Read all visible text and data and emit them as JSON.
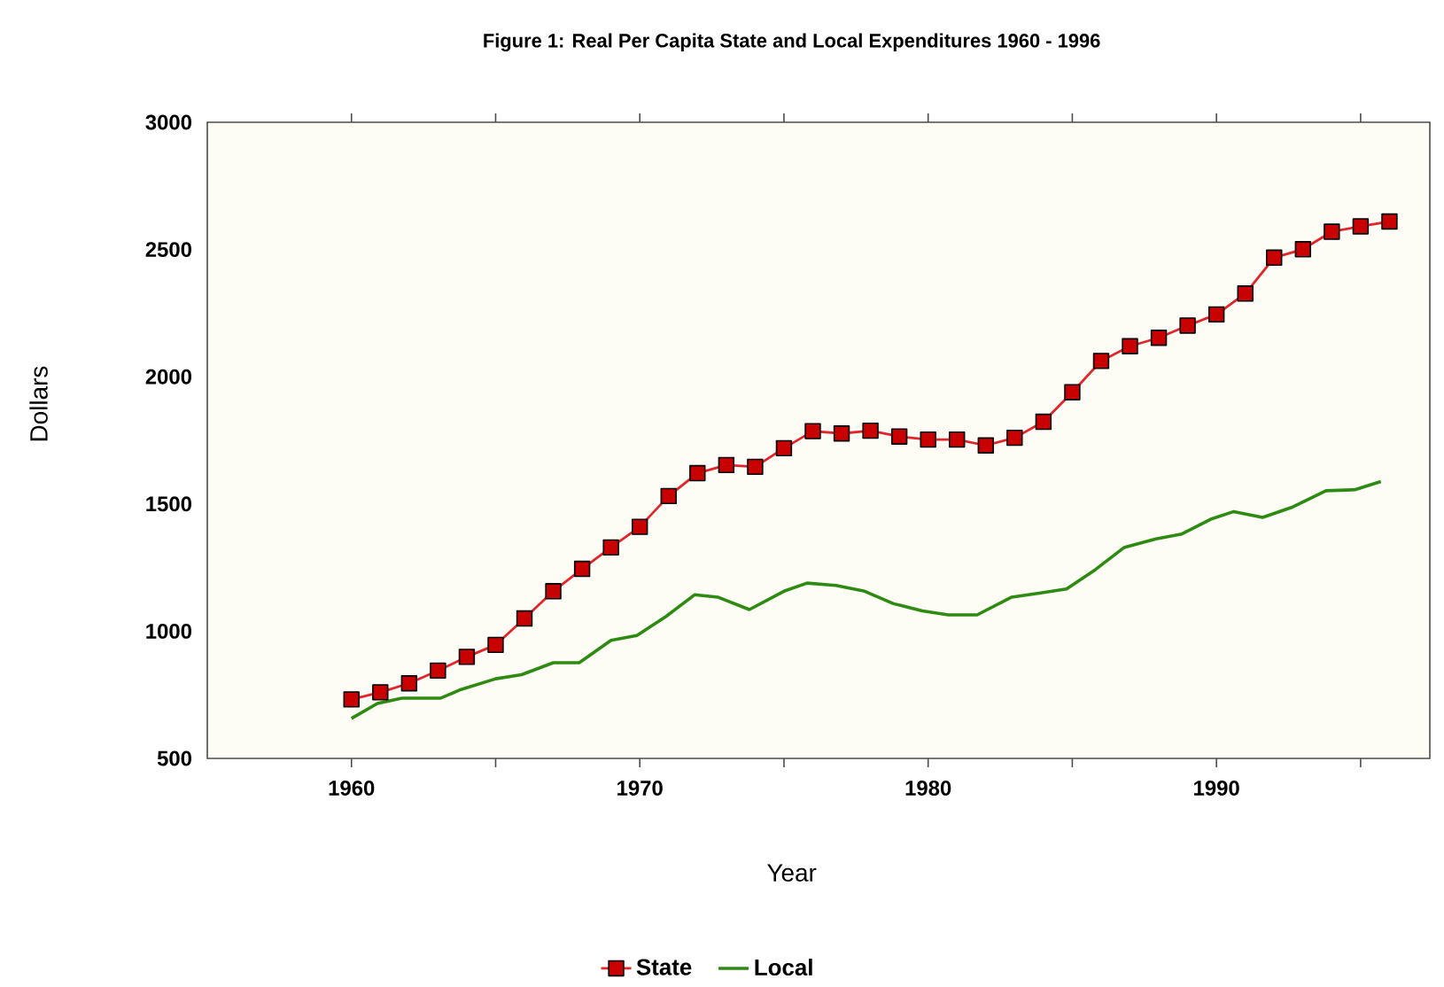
{
  "chart_data": {
    "type": "line",
    "title": "Figure 1: Real Per Capita State and Local Expenditures 1960 - 1996",
    "xlabel": "Year",
    "ylabel": "Dollars",
    "xlim": [
      1955,
      1997.4
    ],
    "ylim": [
      500,
      3000
    ],
    "xticks": [
      1960,
      {
        "value": 1965,
        "label": null
      },
      1970,
      {
        "value": 1975,
        "label": null
      },
      1980,
      {
        "value": 1985,
        "label": null
      },
      1990,
      {
        "value": 1995,
        "label": null
      }
    ],
    "yticks": [
      500,
      1000,
      1500,
      2000,
      2500,
      3000
    ],
    "grid": false,
    "legend": "bottom",
    "series": [
      {
        "name": "State",
        "color": "#e3242b",
        "marker": "square",
        "x": [
          1960,
          1961,
          1962,
          1963,
          1964,
          1965,
          1966,
          1967,
          1968,
          1969,
          1970,
          1971,
          1972,
          1973,
          1974,
          1975,
          1976,
          1977,
          1978,
          1979,
          1980,
          1981,
          1982,
          1983,
          1984,
          1985,
          1986,
          1987,
          1988,
          1989,
          1990,
          1991,
          1992,
          1993,
          1994,
          1995,
          1996
        ],
        "values": [
          732,
          760,
          795,
          845,
          899,
          946,
          1050,
          1157,
          1245,
          1329,
          1410,
          1531,
          1621,
          1653,
          1646,
          1719,
          1786,
          1777,
          1788,
          1765,
          1753,
          1753,
          1730,
          1760,
          1823,
          1939,
          2062,
          2120,
          2153,
          2201,
          2245,
          2327,
          2468,
          2501,
          2570,
          2591,
          2610
        ]
      },
      {
        "name": "Local",
        "color": "#2e8b12",
        "marker": "none",
        "x": [
          1960,
          1960.9,
          1961.75,
          1963.1,
          1963.8,
          1965,
          1965.9,
          1967,
          1967.9,
          1969,
          1969.9,
          1970.9,
          1971.9,
          1972.7,
          1973.8,
          1975,
          1975.8,
          1976.8,
          1977.8,
          1978.8,
          1979.8,
          1980.7,
          1981.7,
          1982.9,
          1983.9,
          1984.8,
          1985.8,
          1986.8,
          1987.9,
          1988.8,
          1989.8,
          1990.6,
          1991.6,
          1992.6,
          1993.8,
          1994.8,
          1995.7
        ],
        "values": [
          657,
          716,
          737,
          737,
          771,
          813,
          829,
          876,
          876,
          964,
          983,
          1057,
          1143,
          1134,
          1085,
          1157,
          1189,
          1180,
          1157,
          1108,
          1080,
          1064,
          1064,
          1134,
          1150,
          1166,
          1242,
          1329,
          1363,
          1382,
          1440,
          1470,
          1447,
          1486,
          1552,
          1556,
          1588
        ]
      }
    ]
  }
}
